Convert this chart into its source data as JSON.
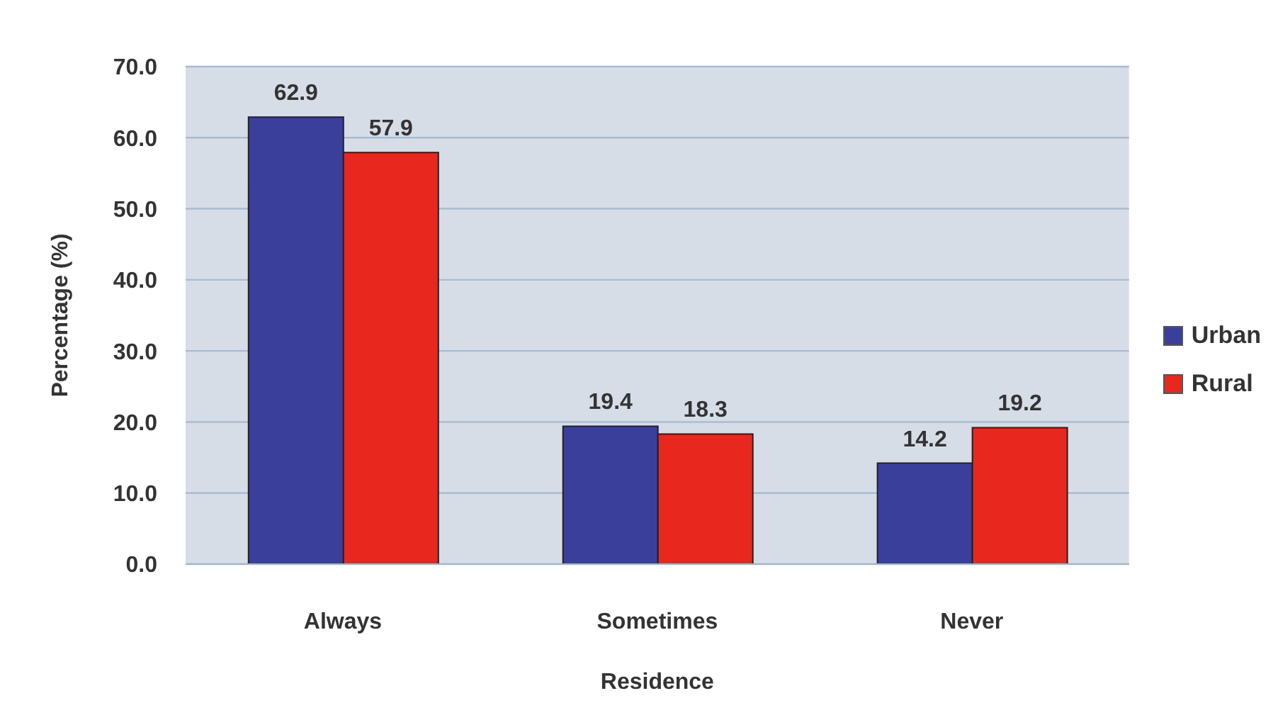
{
  "chart_data": {
    "type": "bar",
    "xlabel": "Residence",
    "ylabel": "Percentage (%)",
    "categories": [
      "Always",
      "Sometimes",
      "Never"
    ],
    "series": [
      {
        "name": "Urban",
        "color": "#3b3f9c",
        "values": [
          62.9,
          19.4,
          14.2
        ]
      },
      {
        "name": "Rural",
        "color": "#e8281e",
        "values": [
          57.9,
          18.3,
          19.2
        ]
      }
    ],
    "ylim": [
      0,
      70
    ],
    "yticks": [
      {
        "value": 0,
        "label": "0.0"
      },
      {
        "value": 10,
        "label": "10.0"
      },
      {
        "value": 20,
        "label": "20.0"
      },
      {
        "value": 30,
        "label": "30.0"
      },
      {
        "value": 40,
        "label": "40.0"
      },
      {
        "value": 50,
        "label": "50.0"
      },
      {
        "value": 60,
        "label": "60.0"
      },
      {
        "value": 70,
        "label": "70.0"
      }
    ],
    "grid": "y",
    "legend": "right",
    "data_labels": true
  }
}
